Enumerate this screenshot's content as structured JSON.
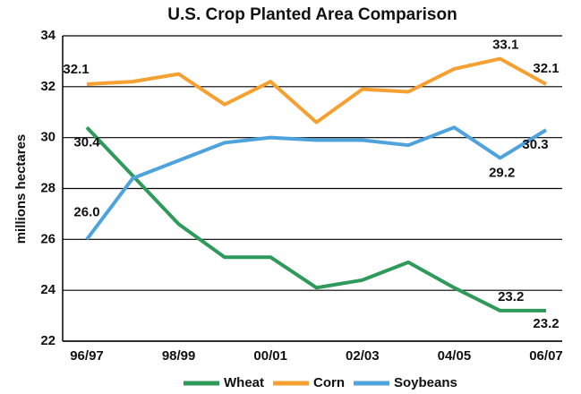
{
  "chart_data": {
    "type": "line",
    "title": "U.S. Crop Planted Area Comparison",
    "y_label": "millions hectares",
    "categories": [
      "96/97",
      null,
      "98/99",
      null,
      "00/01",
      null,
      "02/03",
      null,
      "04/05",
      null,
      "06/07"
    ],
    "series": [
      {
        "name": "Wheat",
        "color": "#2e9a5a",
        "values": [
          30.4,
          28.5,
          26.6,
          25.3,
          25.3,
          24.1,
          24.4,
          25.1,
          24.1,
          23.2,
          23.2
        ],
        "value_labels": [
          "30.4",
          null,
          null,
          null,
          null,
          null,
          null,
          null,
          null,
          "23.2",
          "23.2"
        ]
      },
      {
        "name": "Corn",
        "color": "#f5a030",
        "values": [
          32.1,
          32.2,
          32.5,
          31.3,
          32.2,
          30.6,
          31.9,
          31.8,
          32.7,
          33.1,
          32.1
        ],
        "value_labels": [
          "32.1",
          null,
          null,
          null,
          null,
          null,
          null,
          null,
          null,
          "33.1",
          "32.1"
        ]
      },
      {
        "name": "Soybeans",
        "color": "#4fa3dc",
        "values": [
          26.0,
          28.4,
          29.1,
          29.8,
          30.0,
          29.9,
          29.9,
          29.7,
          30.4,
          29.2,
          30.3
        ],
        "value_labels": [
          "26.0",
          null,
          null,
          null,
          null,
          null,
          null,
          null,
          null,
          "29.2",
          "30.3"
        ]
      }
    ],
    "ylim": [
      22,
      34
    ],
    "yticks": [
      22,
      24,
      26,
      28,
      30,
      32,
      34
    ],
    "grid": true,
    "legend": "bottom"
  }
}
